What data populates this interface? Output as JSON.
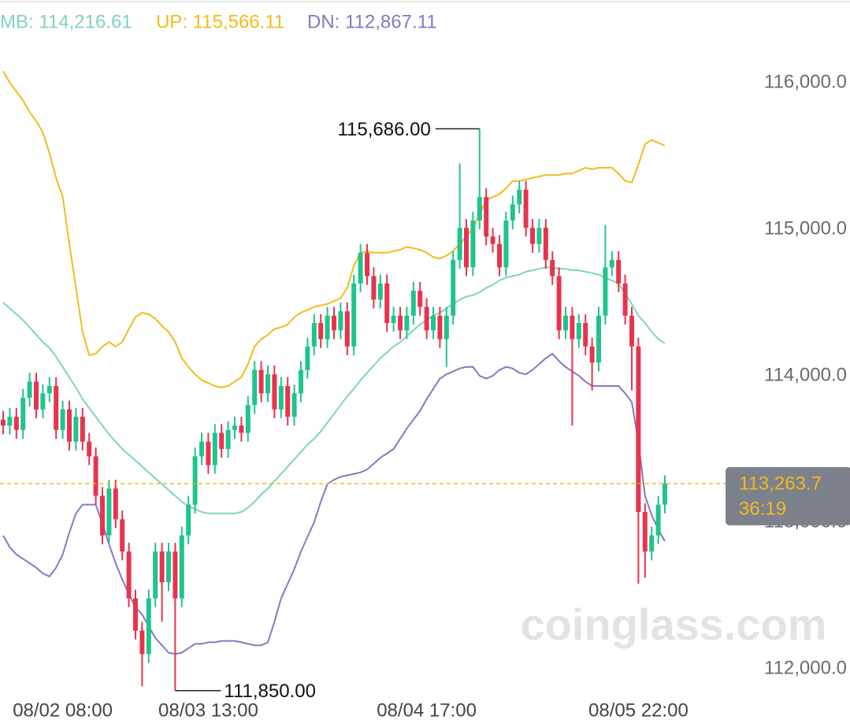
{
  "chart_data": {
    "type": "candlestick",
    "up_color": "#1fc48d",
    "down_color": "#e8334f",
    "categories": [
      null,
      null,
      null,
      null,
      null,
      null,
      null,
      null,
      null,
      "08/02 08:00",
      null,
      null,
      null,
      null,
      null,
      null,
      null,
      null,
      null,
      null,
      null,
      null,
      null,
      null,
      null,
      null,
      null,
      null,
      null,
      null,
      null,
      "08/03 13:00",
      null,
      null,
      null,
      null,
      null,
      null,
      null,
      null,
      null,
      null,
      null,
      null,
      null,
      null,
      null,
      null,
      null,
      null,
      null,
      null,
      null,
      null,
      null,
      null,
      null,
      null,
      null,
      null,
      null,
      null,
      null,
      null,
      "08/04 17:00",
      null,
      null,
      null,
      null,
      null,
      null,
      null,
      null,
      null,
      null,
      null,
      null,
      null,
      null,
      null,
      null,
      null,
      null,
      null,
      null,
      null,
      null,
      null,
      null,
      null,
      null,
      null,
      null,
      null,
      null,
      null,
      "08/05 22:00",
      null,
      null,
      null,
      null
    ],
    "open": [
      113700,
      113660,
      113720,
      113630,
      113850,
      113960,
      113770,
      113880,
      113930,
      113630,
      113770,
      113550,
      113720,
      113550,
      113450,
      113180,
      112910,
      113230,
      113020,
      112800,
      112480,
      112260,
      112100,
      112480,
      112800,
      112590,
      112800,
      112480,
      112910,
      113120,
      113450,
      113550,
      113390,
      113610,
      113500,
      113630,
      113660,
      113610,
      113800,
      114040,
      113880,
      114010,
      113770,
      113930,
      113720,
      113880,
      114040,
      114200,
      114360,
      114250,
      114410,
      114310,
      114440,
      114200,
      114630,
      114840,
      114680,
      114520,
      114630,
      114360,
      114410,
      114310,
      114410,
      114580,
      114470,
      114310,
      114410,
      114250,
      114410,
      114790,
      115010,
      114740,
      115060,
      115220,
      114950,
      114900,
      114740,
      115060,
      115170,
      115270,
      115010,
      114900,
      115010,
      114790,
      114680,
      114310,
      114410,
      114250,
      114360,
      114200,
      114090,
      114410,
      114740,
      114790,
      114630,
      114410,
      114200,
      113070,
      112800,
      112910,
      113120
    ],
    "high": [
      113760,
      113780,
      113780,
      113910,
      114020,
      114020,
      113940,
      113990,
      113990,
      113830,
      113830,
      113780,
      113780,
      113610,
      113510,
      113240,
      113290,
      113290,
      113080,
      112860,
      112540,
      112320,
      112540,
      112860,
      112860,
      112860,
      112860,
      112970,
      113180,
      113510,
      113610,
      113610,
      113670,
      113670,
      113690,
      113720,
      113720,
      113860,
      114100,
      114100,
      114070,
      114070,
      113990,
      113990,
      113940,
      114100,
      114260,
      114420,
      114420,
      114470,
      114470,
      114500,
      114500,
      114690,
      114900,
      114900,
      114740,
      114690,
      114690,
      114470,
      114470,
      114470,
      114640,
      114640,
      114530,
      114470,
      114470,
      114470,
      114850,
      115450,
      115070,
      115120,
      115686,
      115280,
      115010,
      114960,
      115120,
      115230,
      115330,
      115330,
      115070,
      115070,
      115070,
      114850,
      114740,
      114470,
      114470,
      114420,
      114420,
      114260,
      114470,
      115030,
      114850,
      114850,
      114690,
      114470,
      114260,
      113130,
      112970,
      113180,
      113320
    ],
    "low": [
      113600,
      113600,
      113570,
      113570,
      113790,
      113710,
      113710,
      113820,
      113570,
      113570,
      113490,
      113490,
      113490,
      113390,
      113120,
      112850,
      112850,
      112960,
      112740,
      112420,
      112200,
      111880,
      112040,
      112420,
      112320,
      112530,
      111850,
      112420,
      112850,
      113060,
      113390,
      113330,
      113330,
      113440,
      113440,
      113570,
      113550,
      113550,
      113740,
      113820,
      113820,
      113710,
      113710,
      113660,
      113660,
      113820,
      113980,
      114140,
      114190,
      114190,
      114250,
      114250,
      114140,
      114140,
      114570,
      114620,
      114460,
      114460,
      114300,
      114300,
      114250,
      114250,
      114350,
      114410,
      114250,
      114250,
      114190,
      114060,
      114350,
      114730,
      114680,
      114680,
      115000,
      114890,
      114840,
      114680,
      114680,
      115000,
      115110,
      114950,
      114840,
      114840,
      114730,
      114620,
      114250,
      114250,
      113660,
      114190,
      114140,
      113900,
      114030,
      114350,
      114680,
      114570,
      114350,
      113900,
      112580,
      112620,
      112740,
      112850,
      113060
    ],
    "close": [
      113660,
      113720,
      113630,
      113850,
      113960,
      113770,
      113880,
      113930,
      113630,
      113770,
      113550,
      113720,
      113550,
      113450,
      113180,
      112910,
      113230,
      113020,
      112800,
      112480,
      112260,
      112100,
      112480,
      112800,
      112590,
      112800,
      112480,
      112910,
      113120,
      113450,
      113550,
      113390,
      113610,
      113500,
      113630,
      113660,
      113610,
      113800,
      114040,
      113880,
      114010,
      113770,
      113930,
      113720,
      113880,
      114040,
      114200,
      114360,
      114250,
      114410,
      114310,
      114440,
      114200,
      114630,
      114840,
      114680,
      114520,
      114630,
      114360,
      114410,
      114310,
      114410,
      114580,
      114470,
      114310,
      114410,
      114250,
      114410,
      114790,
      115010,
      114740,
      115060,
      115220,
      114950,
      114900,
      114740,
      115060,
      115170,
      115270,
      115010,
      114900,
      115010,
      114790,
      114680,
      114310,
      114410,
      114250,
      114360,
      114200,
      114090,
      114410,
      114740,
      114790,
      114630,
      114410,
      114200,
      113070,
      112800,
      112910,
      113120,
      113263.7
    ],
    "series": [
      {
        "name": "MB: 114,216.61",
        "color": "#7fd4c1",
        "values": [
          114500,
          114460,
          114420,
          114380,
          114330,
          114280,
          114230,
          114190,
          114130,
          114060,
          113990,
          113920,
          113840,
          113780,
          113720,
          113660,
          113600,
          113550,
          113500,
          113460,
          113420,
          113380,
          113340,
          113300,
          113260,
          113220,
          113180,
          113140,
          113110,
          113090,
          113070,
          113060,
          113060,
          113060,
          113060,
          113060,
          113070,
          113100,
          113140,
          113190,
          113230,
          113280,
          113330,
          113380,
          113430,
          113480,
          113530,
          113570,
          113620,
          113680,
          113740,
          113800,
          113860,
          113910,
          113970,
          114020,
          114070,
          114120,
          114160,
          114200,
          114230,
          114270,
          114310,
          114350,
          114380,
          114410,
          114430,
          114460,
          114490,
          114520,
          114540,
          114550,
          114570,
          114600,
          114620,
          114650,
          114670,
          114680,
          114690,
          114710,
          114720,
          114730,
          114740,
          114740,
          114730,
          114730,
          114720,
          114720,
          114710,
          114700,
          114690,
          114670,
          114650,
          114630,
          114560,
          114490,
          114410,
          114360,
          114300,
          114250,
          114220
        ]
      },
      {
        "name": "UP: 115,566.11",
        "color": "#f0bc1c",
        "values": [
          116080,
          116000,
          115940,
          115880,
          115800,
          115740,
          115660,
          115520,
          115350,
          115220,
          114900,
          114600,
          114300,
          114140,
          114150,
          114200,
          114230,
          114200,
          114230,
          114320,
          114400,
          114430,
          114420,
          114390,
          114340,
          114300,
          114230,
          114120,
          114060,
          114010,
          113970,
          113950,
          113930,
          113920,
          113930,
          113960,
          113990,
          114080,
          114200,
          114250,
          114280,
          114320,
          114330,
          114350,
          114400,
          114430,
          114450,
          114470,
          114480,
          114490,
          114510,
          114530,
          114600,
          114750,
          114840,
          114850,
          114840,
          114840,
          114840,
          114850,
          114860,
          114880,
          114870,
          114860,
          114840,
          114810,
          114800,
          114820,
          114850,
          114900,
          114950,
          115010,
          115100,
          115200,
          115220,
          115240,
          115280,
          115330,
          115330,
          115340,
          115350,
          115360,
          115370,
          115370,
          115370,
          115380,
          115380,
          115400,
          115420,
          115410,
          115420,
          115420,
          115420,
          115380,
          115330,
          115320,
          115440,
          115580,
          115610,
          115590,
          115570
        ]
      },
      {
        "name": "DN: 112,867.11",
        "color": "#8877c2",
        "values": [
          112910,
          112830,
          112780,
          112750,
          112720,
          112690,
          112650,
          112630,
          112690,
          112780,
          112930,
          113060,
          113120,
          113120,
          113120,
          112990,
          112850,
          112720,
          112610,
          112510,
          112420,
          112370,
          112290,
          112210,
          112160,
          112110,
          112100,
          112110,
          112140,
          112170,
          112170,
          112180,
          112180,
          112190,
          112190,
          112190,
          112180,
          112170,
          112160,
          112160,
          112180,
          112320,
          112480,
          112580,
          112680,
          112800,
          112900,
          113000,
          113140,
          113260,
          113290,
          113310,
          113320,
          113330,
          113340,
          113360,
          113400,
          113440,
          113470,
          113500,
          113570,
          113640,
          113700,
          113760,
          113840,
          113910,
          113980,
          114010,
          114030,
          114050,
          114060,
          114060,
          114000,
          113980,
          114000,
          114040,
          114060,
          114050,
          114020,
          114010,
          114040,
          114080,
          114120,
          114150,
          114100,
          114060,
          114030,
          114000,
          113960,
          113930,
          113930,
          113930,
          113930,
          113930,
          113880,
          113820,
          113550,
          113180,
          113050,
          112950,
          112870
        ]
      }
    ],
    "ylim": [
      111650,
      116565
    ],
    "yticks": [
      {
        "value": 112000,
        "label": "112,000.0"
      },
      {
        "value": 113000,
        "label": "113,000.0"
      },
      {
        "value": 114000,
        "label": "114,000.0"
      },
      {
        "value": 115000,
        "label": "115,000.0"
      },
      {
        "value": 116000,
        "label": "116,000.0"
      }
    ],
    "max_label": "115,686.00",
    "min_label": "111,850.00",
    "last_price_label": "113,263.7",
    "countdown_label": "36:19",
    "watermark": "coinglass.com"
  }
}
